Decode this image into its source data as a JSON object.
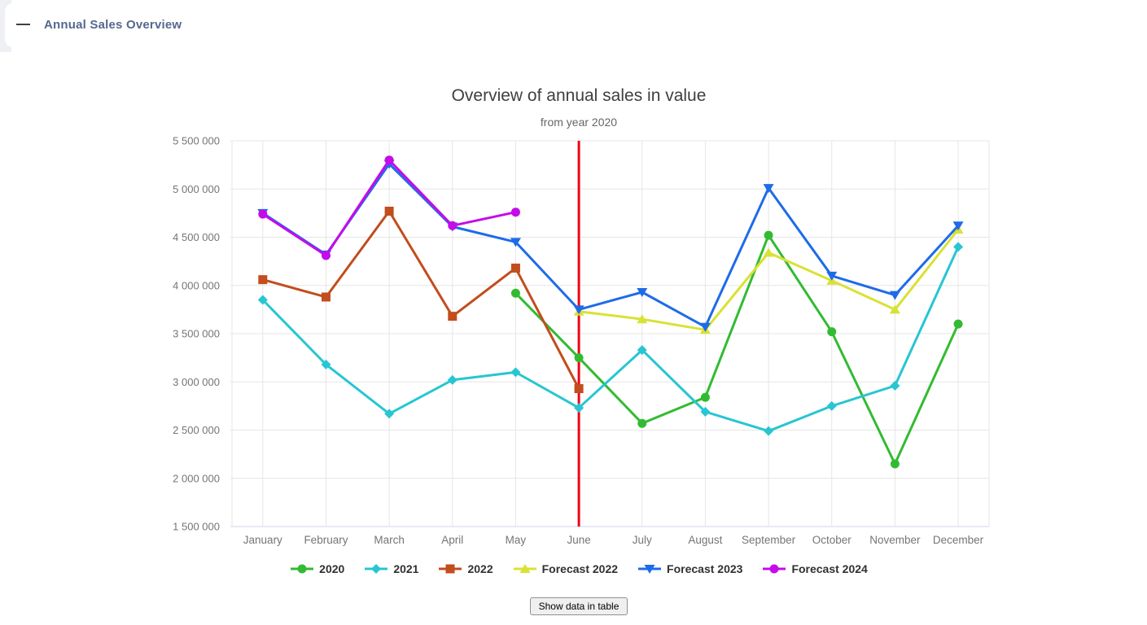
{
  "header": {
    "title": "Annual Sales Overview",
    "collapse_icon": "minus-dash"
  },
  "chart_data": {
    "type": "line",
    "title": "Overview of annual sales in value",
    "subtitle": "from year 2020",
    "categories": [
      "January",
      "February",
      "March",
      "April",
      "May",
      "June",
      "July",
      "August",
      "September",
      "October",
      "November",
      "December"
    ],
    "ylim": [
      1500000,
      5500000
    ],
    "y_tick_step": 500000,
    "y_tick_labels": [
      "1 500 000",
      "2 000 000",
      "2 500 000",
      "3 000 000",
      "3 500 000",
      "4 000 000",
      "4 500 000",
      "5 000 000",
      "5 500 000"
    ],
    "grid": true,
    "legend_position": "bottom",
    "annotation": {
      "type": "vertical-line",
      "at_category": "June",
      "color": "#ee0517"
    },
    "series": [
      {
        "name": "2020",
        "color": "#32bb32",
        "marker": "circle",
        "values": [
          null,
          null,
          null,
          null,
          3920000,
          3250000,
          2570000,
          2840000,
          4520000,
          3520000,
          2150000,
          3600000
        ]
      },
      {
        "name": "2021",
        "color": "#28c5d3",
        "marker": "diamond",
        "values": [
          3850000,
          3180000,
          2670000,
          3020000,
          3100000,
          2730000,
          3330000,
          2690000,
          2490000,
          2750000,
          2960000,
          4400000
        ]
      },
      {
        "name": "2022",
        "color": "#c24d1d",
        "marker": "square",
        "values": [
          4060000,
          3880000,
          4770000,
          3680000,
          4180000,
          2930000,
          null,
          null,
          null,
          null,
          null,
          null
        ]
      },
      {
        "name": "Forecast 2022",
        "color": "#d8e234",
        "marker": "triangle-up",
        "values": [
          null,
          null,
          null,
          null,
          null,
          3730000,
          3650000,
          3540000,
          4340000,
          4050000,
          3750000,
          4580000
        ]
      },
      {
        "name": "Forecast 2023",
        "color": "#1e6be9",
        "marker": "triangle-down",
        "values": [
          4750000,
          4320000,
          5260000,
          4610000,
          4450000,
          3750000,
          3930000,
          3570000,
          5010000,
          4100000,
          3900000,
          4620000
        ]
      },
      {
        "name": "Forecast 2024",
        "color": "#c40ce8",
        "marker": "circle",
        "values": [
          4740000,
          4310000,
          5300000,
          4620000,
          4760000,
          null,
          null,
          null,
          null,
          null,
          null,
          null
        ]
      }
    ]
  },
  "table_button": {
    "label": "Show data in table"
  },
  "colors": {
    "grid": "#e6e6e6",
    "axis_line": "#ccd6eb",
    "axis_label": "#757579",
    "title": "#3f3f3f",
    "subtitle": "#666666",
    "header_title": "#55688f",
    "legend_text": "#303030"
  }
}
